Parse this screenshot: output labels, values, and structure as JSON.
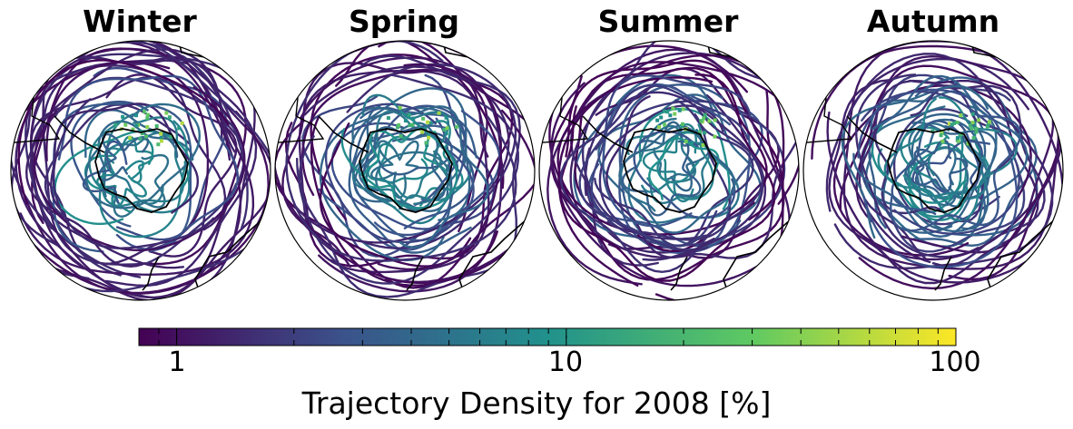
{
  "chart_data": {
    "type": "heatmap",
    "projection": "south polar stereographic",
    "panels": [
      {
        "title": "Winter"
      },
      {
        "title": "Spring"
      },
      {
        "title": "Summer"
      },
      {
        "title": "Autumn"
      }
    ],
    "colorbar": {
      "label": "Trajectory Density  for 2008 [%]",
      "scale": "log",
      "range": [
        0.8,
        100
      ],
      "ticks": [
        1,
        10,
        100
      ],
      "tick_labels": [
        "1",
        "10",
        "100"
      ],
      "colormap": "viridis",
      "colormap_stops": [
        "#440154",
        "#3b528b",
        "#21918c",
        "#5ec962",
        "#fde725"
      ]
    }
  }
}
